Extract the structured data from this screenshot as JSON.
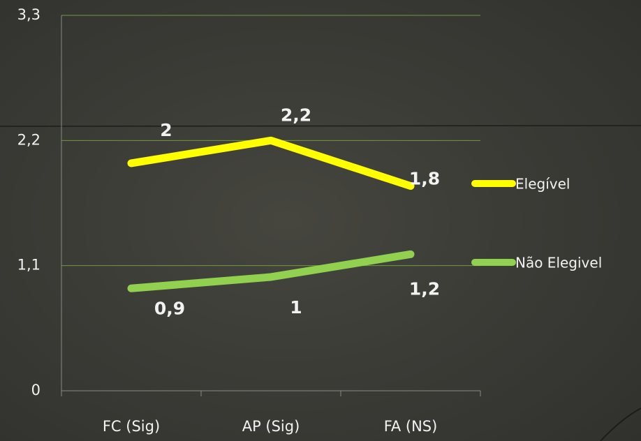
{
  "chart_data": {
    "type": "line",
    "categories": [
      "FC (Sig)",
      "AP (Sig)",
      "FA (NS)"
    ],
    "series": [
      {
        "name": "Elegível",
        "color": "#ffff00",
        "values": [
          2,
          2.2,
          1.8
        ],
        "value_labels": [
          "2",
          "2,2",
          "1,8"
        ]
      },
      {
        "name": "Não Elegivel",
        "color": "#92d050",
        "values": [
          0.9,
          1,
          1.2
        ],
        "value_labels": [
          "0,9",
          "1",
          "1,2"
        ]
      }
    ],
    "ylim": [
      0,
      3.3
    ],
    "yticks": [
      0,
      {
        "value": 1.1,
        "label": "1,1"
      },
      {
        "value": 2.2,
        "label": "2,2"
      },
      {
        "value": 3.3,
        "label": "3,3"
      }
    ],
    "grid": true,
    "legend": "right"
  }
}
